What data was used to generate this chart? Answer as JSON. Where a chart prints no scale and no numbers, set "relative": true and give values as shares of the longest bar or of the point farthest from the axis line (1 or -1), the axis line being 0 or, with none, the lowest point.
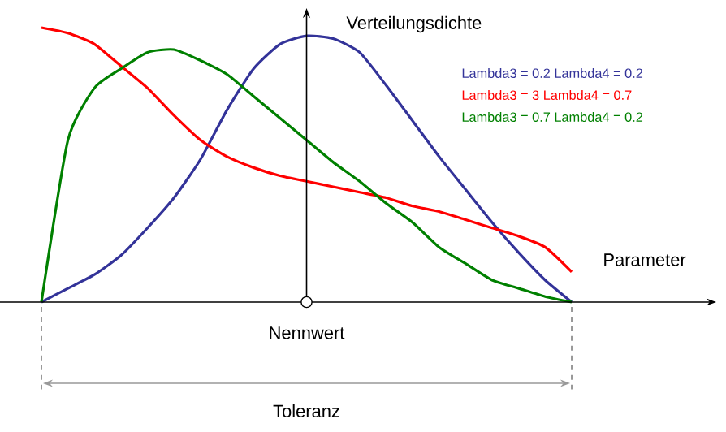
{
  "chart_data": {
    "type": "line",
    "relative": true,
    "legend": "top right",
    "categories": [
      null,
      null,
      null,
      null,
      null,
      null,
      null,
      null,
      null,
      null,
      null,
      null,
      null,
      null,
      null,
      null,
      null,
      null,
      null,
      null,
      null
    ],
    "series": [
      {
        "name": "Lambda3 = 0.2  Lambda4 = 0.2",
        "color": "#333399",
        "values": [
          0,
          0.05,
          0.1,
          0.17,
          0.27,
          0.38,
          0.52,
          0.7,
          0.85,
          0.94,
          0.97,
          0.96,
          0.91,
          0.79,
          0.66,
          0.53,
          0.41,
          0.29,
          0.18,
          0.08,
          0
        ]
      },
      {
        "name": "Lambda3 = 3  Lambda4 = 0.7",
        "color": "#ff0000",
        "values": [
          1,
          0.98,
          0.94,
          0.86,
          0.78,
          0.68,
          0.59,
          0.53,
          0.49,
          0.46,
          0.44,
          0.42,
          0.4,
          0.38,
          0.35,
          0.33,
          0.3,
          0.27,
          0.24,
          0.2,
          0.11
        ]
      },
      {
        "name": "Lambda3 = 0.7  Lambda4 = 0.2",
        "color": "#008000",
        "values": [
          0,
          0.59,
          0.78,
          0.85,
          0.91,
          0.92,
          0.88,
          0.83,
          0.75,
          0.67,
          0.59,
          0.51,
          0.44,
          0.36,
          0.29,
          0.2,
          0.14,
          0.08,
          0.05,
          0.02,
          0
        ]
      }
    ],
    "annotations": [
      "Verteilungsdichte",
      "Parameter",
      "Nennwert",
      "Toleranz"
    ]
  }
}
